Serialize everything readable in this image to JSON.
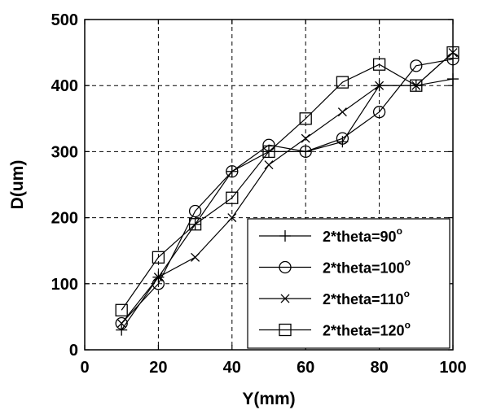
{
  "chart_data": {
    "type": "line",
    "xlabel": "Y(mm)",
    "ylabel": "D(um)",
    "xlim": [
      0,
      100
    ],
    "ylim": [
      0,
      500
    ],
    "xticks": [
      "0",
      "20",
      "40",
      "60",
      "80",
      "100"
    ],
    "yticks": [
      "0",
      "100",
      "200",
      "300",
      "400",
      "500"
    ],
    "grid": true,
    "legend_position": "lower-right",
    "x": [
      10,
      20,
      30,
      40,
      50,
      60,
      70,
      80,
      90,
      100
    ],
    "series": [
      {
        "name": "2*theta=90",
        "legend_suffix": "o",
        "marker": "plus",
        "values": [
          30,
          110,
          190,
          270,
          300,
          300,
          315,
          400,
          400,
          410
        ]
      },
      {
        "name": "2*theta=100",
        "legend_suffix": "o",
        "marker": "circle",
        "values": [
          40,
          100,
          210,
          270,
          310,
          300,
          320,
          360,
          430,
          440
        ]
      },
      {
        "name": "2*theta=110",
        "legend_suffix": "o",
        "marker": "x",
        "values": [
          40,
          110,
          140,
          200,
          280,
          320,
          360,
          400,
          400,
          450
        ]
      },
      {
        "name": "2*theta=120",
        "legend_suffix": "o",
        "marker": "square",
        "values": [
          60,
          140,
          190,
          230,
          300,
          350,
          405,
          432,
          400,
          450
        ]
      }
    ]
  }
}
